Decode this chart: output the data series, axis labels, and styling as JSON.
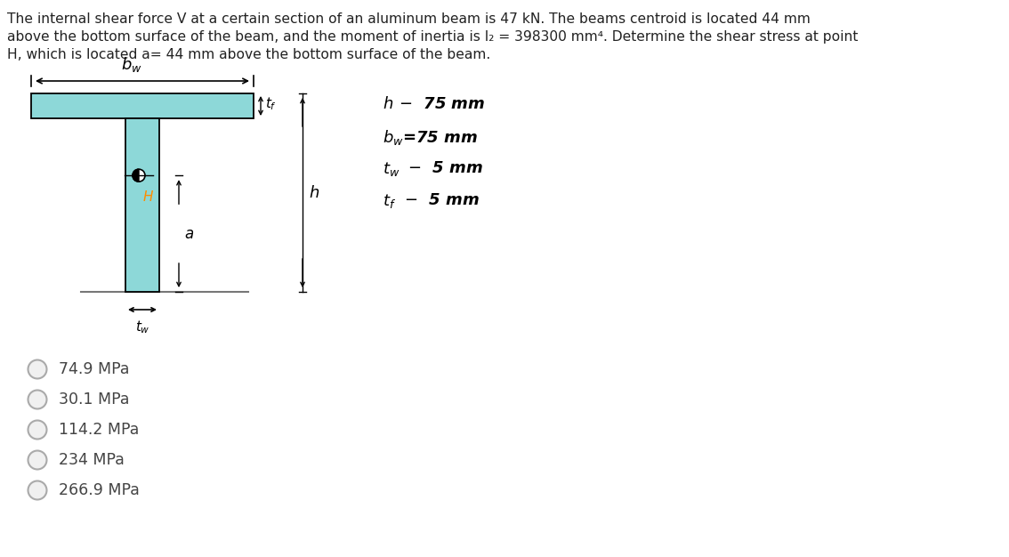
{
  "beam_fill_color": "#8DD8D8",
  "beam_edge_color": "#000000",
  "bg_color": "#ffffff",
  "choices": [
    "74.9 MPa",
    "30.1 MPa",
    "114.2 MPa",
    "234 MPa",
    "266.9 MPa"
  ],
  "label_H_color": "#FF8C00",
  "title_line1": "The internal shear force V at a certain section of an aluminum beam is 47 kN. The beams centroid is located 44 mm",
  "title_line2": "above the bottom surface of the beam, and the moment of inertia is I₂ = 398300 mm⁴. Determine the shear stress at point",
  "title_line3": "H, which is located a= 44 mm above the bottom surface of the beam."
}
